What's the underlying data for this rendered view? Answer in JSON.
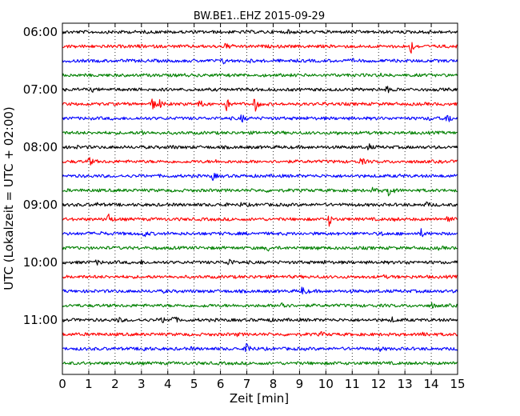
{
  "chart_data": {
    "type": "line",
    "title": "BW.BE1..EHZ 2015-09-29",
    "xlabel": "Zeit  [min]",
    "ylabel": "UTC (Lokalzeit = UTC + 02:00)",
    "xlim": [
      0,
      15
    ],
    "x_ticks": [
      "0",
      "1",
      "2",
      "3",
      "4",
      "5",
      "6",
      "7",
      "8",
      "9",
      "10",
      "11",
      "12",
      "13",
      "14",
      "15"
    ],
    "y_ticks": [
      "06:00",
      "07:00",
      "08:00",
      "09:00",
      "10:00",
      "11:00"
    ],
    "trace_interval_min": 15,
    "grid": "vertical dotted",
    "colors": [
      "#000000",
      "#ff0000",
      "#0000ff",
      "#008000"
    ],
    "traces": [
      {
        "start": "06:00",
        "events": [
          [
            13.8,
            0.25
          ],
          [
            8.6,
            0.2
          ],
          [
            2.1,
            0.1
          ]
        ]
      },
      {
        "start": "06:15",
        "events": [
          [
            13.2,
            1.0
          ],
          [
            6.2,
            0.45
          ],
          [
            2.9,
            0.15
          ]
        ]
      },
      {
        "start": "06:30",
        "events": [
          [
            6.1,
            0.3
          ],
          [
            11.0,
            0.15
          ],
          [
            7.1,
            0.1
          ]
        ]
      },
      {
        "start": "06:45",
        "events": [
          [
            12.1,
            0.2
          ],
          [
            4.5,
            0.1
          ]
        ]
      },
      {
        "start": "07:00",
        "events": [
          [
            12.3,
            0.4
          ],
          [
            1.1,
            0.2
          ],
          [
            7.3,
            0.15
          ]
        ]
      },
      {
        "start": "07:15",
        "events": [
          [
            3.6,
            1.0
          ],
          [
            3.4,
            0.7
          ],
          [
            7.3,
            1.0
          ],
          [
            6.2,
            0.85
          ],
          [
            5.2,
            0.5
          ],
          [
            10.0,
            0.15
          ]
        ]
      },
      {
        "start": "07:30",
        "events": [
          [
            14.6,
            0.85
          ],
          [
            6.8,
            0.5
          ],
          [
            13.9,
            0.25
          ],
          [
            9.3,
            0.1
          ]
        ]
      },
      {
        "start": "07:45",
        "events": [
          [
            3.0,
            0.3
          ],
          [
            10.4,
            0.15
          ]
        ]
      },
      {
        "start": "08:00",
        "events": [
          [
            11.6,
            0.4
          ],
          [
            4.1,
            0.2
          ],
          [
            0.5,
            0.15
          ]
        ]
      },
      {
        "start": "08:15",
        "events": [
          [
            1.0,
            0.6
          ],
          [
            11.3,
            0.65
          ],
          [
            5.8,
            0.1
          ]
        ]
      },
      {
        "start": "08:30",
        "events": [
          [
            5.7,
            0.45
          ],
          [
            12.8,
            0.1
          ]
        ]
      },
      {
        "start": "08:45",
        "events": [
          [
            12.4,
            1.15
          ],
          [
            11.8,
            0.4
          ],
          [
            7.7,
            0.1
          ]
        ]
      },
      {
        "start": "09:00",
        "events": [
          [
            13.8,
            0.35
          ],
          [
            6.8,
            0.25
          ],
          [
            6.0,
            0.2
          ],
          [
            1.3,
            0.15
          ]
        ]
      },
      {
        "start": "09:15",
        "events": [
          [
            1.7,
            1.1
          ],
          [
            10.1,
            0.85
          ],
          [
            14.6,
            0.6
          ],
          [
            12.6,
            0.15
          ]
        ]
      },
      {
        "start": "09:30",
        "events": [
          [
            13.6,
            0.5
          ],
          [
            3.1,
            0.35
          ],
          [
            1.4,
            0.25
          ],
          [
            12.1,
            0.2
          ]
        ]
      },
      {
        "start": "09:45",
        "events": [
          [
            7.8,
            0.3
          ],
          [
            9.6,
            0.15
          ],
          [
            14.3,
            0.15
          ]
        ]
      },
      {
        "start": "10:00",
        "events": [
          [
            6.3,
            0.6
          ],
          [
            1.3,
            0.25
          ],
          [
            3.0,
            0.15
          ],
          [
            9.9,
            0.15
          ],
          [
            13.1,
            0.15
          ]
        ]
      },
      {
        "start": "10:15",
        "events": [
          [
            7.3,
            0.1
          ],
          [
            12.2,
            0.1
          ]
        ]
      },
      {
        "start": "10:30",
        "events": [
          [
            9.1,
            0.7
          ],
          [
            3.8,
            0.1
          ],
          [
            10.9,
            0.1
          ]
        ]
      },
      {
        "start": "10:45",
        "events": [
          [
            8.3,
            1.05
          ],
          [
            14.0,
            0.3
          ],
          [
            5.4,
            0.1
          ]
        ]
      },
      {
        "start": "11:00",
        "events": [
          [
            4.2,
            0.55
          ],
          [
            3.8,
            0.35
          ],
          [
            2.1,
            0.3
          ],
          [
            12.5,
            0.25
          ],
          [
            7.8,
            0.15
          ]
        ]
      },
      {
        "start": "11:15",
        "events": [
          [
            13.7,
            0.5
          ],
          [
            9.8,
            0.3
          ],
          [
            1.1,
            0.15
          ],
          [
            6.6,
            0.15
          ]
        ]
      },
      {
        "start": "11:30",
        "events": [
          [
            7.0,
            1.05
          ],
          [
            3.1,
            0.35
          ],
          [
            12.0,
            0.3
          ],
          [
            4.9,
            0.1
          ]
        ]
      },
      {
        "start": "11:45",
        "events": [
          [
            10.3,
            0.1
          ],
          [
            2.5,
            0.1
          ]
        ]
      }
    ]
  }
}
